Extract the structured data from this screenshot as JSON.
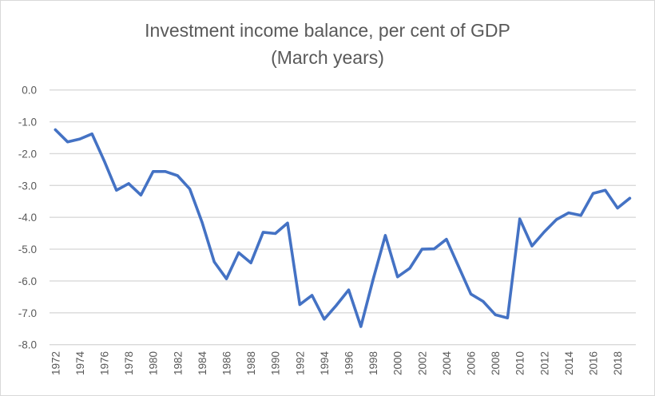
{
  "chart_data": {
    "type": "line",
    "title": "Investment income balance, per cent of GDP",
    "subtitle": "(March years)",
    "xlabel": "",
    "ylabel": "",
    "ylim": [
      -8,
      0
    ],
    "yticks": [
      "0.0",
      "-1.0",
      "-2.0",
      "-3.0",
      "-4.0",
      "-5.0",
      "-6.0",
      "-7.0",
      "-8.0"
    ],
    "xtick_labels": [
      "1972",
      "1974",
      "1976",
      "1978",
      "1980",
      "1982",
      "1984",
      "1986",
      "1988",
      "1990",
      "1992",
      "1994",
      "1996",
      "1998",
      "2000",
      "2002",
      "2004",
      "2006",
      "2008",
      "2010",
      "2012",
      "2014",
      "2016",
      "2018"
    ],
    "grid": true,
    "legend": "none",
    "color": "#4472C4",
    "x": [
      1972,
      1973,
      1974,
      1975,
      1976,
      1977,
      1978,
      1979,
      1980,
      1981,
      1982,
      1983,
      1984,
      1985,
      1986,
      1987,
      1988,
      1989,
      1990,
      1991,
      1992,
      1993,
      1994,
      1995,
      1996,
      1997,
      1998,
      1999,
      2000,
      2001,
      2002,
      2003,
      2004,
      2005,
      2006,
      2007,
      2008,
      2009,
      2010,
      2011,
      2012,
      2013,
      2014,
      2015,
      2016,
      2017,
      2018,
      2019
    ],
    "values": [
      -1.25,
      -1.63,
      -1.54,
      -1.38,
      -2.23,
      -3.15,
      -2.94,
      -3.3,
      -2.56,
      -2.56,
      -2.69,
      -3.11,
      -4.15,
      -5.4,
      -5.93,
      -5.11,
      -5.43,
      -4.47,
      -4.51,
      -4.18,
      -6.74,
      -6.45,
      -7.2,
      -6.76,
      -6.28,
      -7.43,
      -5.95,
      -4.57,
      -5.87,
      -5.6,
      -5.0,
      -4.99,
      -4.69,
      -5.55,
      -6.41,
      -6.64,
      -7.06,
      -7.16,
      -4.05,
      -4.9,
      -4.46,
      -4.07,
      -3.86,
      -3.94,
      -3.25,
      -3.15,
      -3.71,
      -3.4
    ]
  }
}
